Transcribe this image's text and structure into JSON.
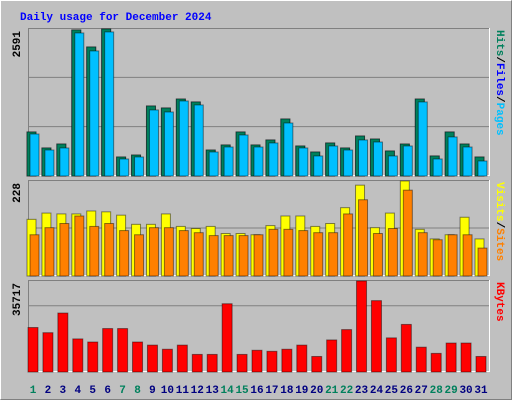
{
  "title": "Daily usage for December 2024",
  "legend_separator": "/",
  "chart_data": [
    {
      "type": "bar",
      "ylim": [
        0,
        2591
      ],
      "yticks": [
        2591
      ],
      "series": [
        {
          "name": "Hits",
          "color": "#00805c",
          "values": [
            776,
            494,
            564,
            2574,
            2274,
            2591,
            335,
            370,
            1234,
            1199,
            1357,
            1305,
            458,
            547,
            776,
            547,
            635,
            1005,
            529,
            423,
            582,
            494,
            705,
            652,
            441,
            564,
            1357,
            353,
            776,
            564,
            335
          ]
        },
        {
          "name": "Files",
          "color": "#0000ff",
          "values": [
            776,
            494,
            564,
            2574,
            2274,
            2591,
            335,
            370,
            1234,
            1199,
            1357,
            1305,
            458,
            547,
            776,
            547,
            635,
            1005,
            529,
            423,
            582,
            494,
            705,
            652,
            441,
            564,
            1357,
            353,
            776,
            564,
            335
          ]
        },
        {
          "name": "Pages",
          "color": "#00c0ff",
          "values": [
            740,
            458,
            494,
            2521,
            2204,
            2539,
            300,
            335,
            1164,
            1128,
            1322,
            1252,
            423,
            511,
            723,
            511,
            582,
            934,
            494,
            353,
            529,
            458,
            635,
            599,
            353,
            529,
            1305,
            300,
            688,
            511,
            264
          ]
        }
      ]
    },
    {
      "type": "bar",
      "ylim": [
        0,
        228
      ],
      "yticks": [
        228
      ],
      "series": [
        {
          "name": "Visits",
          "color": "#ffff00",
          "values": [
            136,
            151,
            149,
            149,
            156,
            154,
            146,
            124,
            124,
            149,
            119,
            114,
            119,
            102,
            102,
            99,
            121,
            144,
            144,
            119,
            126,
            164,
            218,
            116,
            151,
            228,
            112,
            89,
            99,
            141,
            89
          ]
        },
        {
          "name": "Sites",
          "color": "#ff8000",
          "values": [
            99,
            116,
            126,
            144,
            119,
            126,
            109,
            99,
            116,
            116,
            109,
            104,
            97,
            97,
            97,
            99,
            112,
            112,
            109,
            104,
            104,
            149,
            183,
            102,
            114,
            206,
            104,
            87,
            99,
            99,
            67
          ]
        }
      ]
    },
    {
      "type": "bar",
      "ylim": [
        0,
        35717
      ],
      "yticks": [
        35717
      ],
      "categories": [
        "1",
        "2",
        "3",
        "4",
        "5",
        "6",
        "7",
        "8",
        "9",
        "10",
        "11",
        "12",
        "13",
        "14",
        "15",
        "16",
        "17",
        "18",
        "19",
        "20",
        "21",
        "22",
        "23",
        "24",
        "25",
        "26",
        "27",
        "28",
        "29",
        "30",
        "31"
      ],
      "category_colors": [
        "#00805c",
        "#000080",
        "#000080",
        "#000080",
        "#000080",
        "#000080",
        "#00805c",
        "#00805c",
        "#000080",
        "#000080",
        "#000080",
        "#000080",
        "#000080",
        "#00805c",
        "#00805c",
        "#000080",
        "#000080",
        "#000080",
        "#000080",
        "#000080",
        "#00805c",
        "#00805c",
        "#000080",
        "#000080",
        "#000080",
        "#000080",
        "#000080",
        "#00805c",
        "#00805c",
        "#000080",
        "#000080"
      ],
      "series": [
        {
          "name": "KBytes",
          "color": "#ff0000",
          "values": [
            17454,
            15424,
            23136,
            12989,
            11771,
            17048,
            17048,
            11771,
            10553,
            8930,
            10553,
            6900,
            6900,
            26789,
            6900,
            8524,
            8118,
            8930,
            10553,
            6089,
            12583,
            16642,
            35717,
            28007,
            13395,
            18671,
            9742,
            7306,
            11365,
            11365,
            6089
          ]
        }
      ]
    }
  ]
}
